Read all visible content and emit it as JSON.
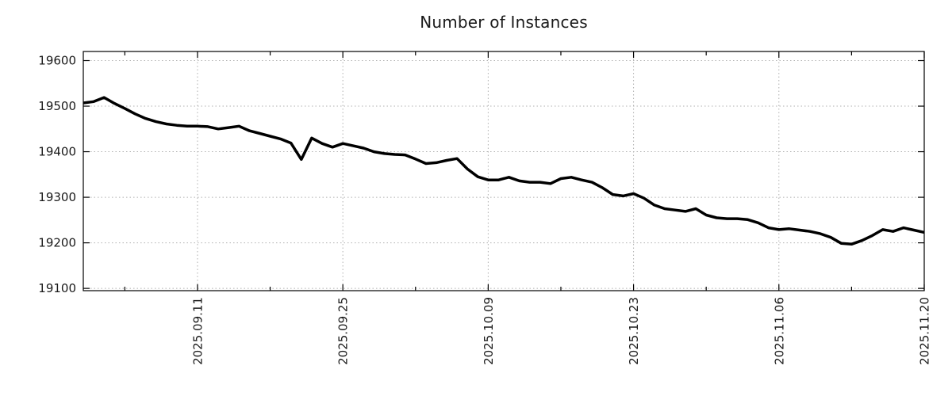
{
  "page": {
    "background": "#ffffff"
  },
  "chart_data": {
    "type": "line",
    "title": "Number of Instances",
    "xlabel": "",
    "ylabel": "",
    "grid": true,
    "legend": "none",
    "line_color": "#000000",
    "grid_color": "#b0b0b0",
    "axis_color": "#000000",
    "text_color": "#1a1a1a",
    "ylim": [
      19095,
      19620
    ],
    "yticks_major": [
      19100,
      19200,
      19300,
      19400,
      19500,
      19600
    ],
    "xticks_major": [
      "2025.09.11",
      "2025.09.25",
      "2025.10.09",
      "2025.10.23",
      "2025.11.06",
      "2025.11.20"
    ],
    "xticks_minor": [
      "2025.09.04",
      "2025.09.18",
      "2025.10.02",
      "2025.10.16",
      "2025.10.30",
      "2025.11.13"
    ],
    "x": [
      "2025.08.31",
      "2025.09.01",
      "2025.09.02",
      "2025.09.03",
      "2025.09.04",
      "2025.09.05",
      "2025.09.06",
      "2025.09.07",
      "2025.09.08",
      "2025.09.09",
      "2025.09.10",
      "2025.09.11",
      "2025.09.12",
      "2025.09.13",
      "2025.09.14",
      "2025.09.15",
      "2025.09.16",
      "2025.09.17",
      "2025.09.18",
      "2025.09.19",
      "2025.09.20",
      "2025.09.21",
      "2025.09.22",
      "2025.09.23",
      "2025.09.24",
      "2025.09.25",
      "2025.09.26",
      "2025.09.27",
      "2025.09.28",
      "2025.09.29",
      "2025.09.30",
      "2025.10.01",
      "2025.10.02",
      "2025.10.03",
      "2025.10.04",
      "2025.10.05",
      "2025.10.06",
      "2025.10.07",
      "2025.10.08",
      "2025.10.09",
      "2025.10.10",
      "2025.10.11",
      "2025.10.12",
      "2025.10.13",
      "2025.10.14",
      "2025.10.15",
      "2025.10.16",
      "2025.10.17",
      "2025.10.18",
      "2025.10.19",
      "2025.10.20",
      "2025.10.21",
      "2025.10.22",
      "2025.10.23",
      "2025.10.24",
      "2025.10.25",
      "2025.10.26",
      "2025.10.27",
      "2025.10.28",
      "2025.10.29",
      "2025.10.30",
      "2025.10.31",
      "2025.11.01",
      "2025.11.02",
      "2025.11.03",
      "2025.11.04",
      "2025.11.05",
      "2025.11.06",
      "2025.11.07",
      "2025.11.08",
      "2025.11.09",
      "2025.11.10",
      "2025.11.11",
      "2025.11.12",
      "2025.11.13",
      "2025.11.14",
      "2025.11.15",
      "2025.11.16",
      "2025.11.17",
      "2025.11.18",
      "2025.11.19",
      "2025.11.20"
    ],
    "values": [
      19507,
      19510,
      19519,
      19506,
      19495,
      19483,
      19473,
      19466,
      19461,
      19458,
      19456,
      19456,
      19455,
      19450,
      19453,
      19456,
      19446,
      19440,
      19434,
      19428,
      19419,
      19383,
      19430,
      19418,
      19410,
      19418,
      19413,
      19408,
      19400,
      19396,
      19394,
      19393,
      19384,
      19374,
      19376,
      19381,
      19385,
      19362,
      19345,
      19338,
      19338,
      19344,
      19336,
      19333,
      19333,
      19330,
      19341,
      19344,
      19338,
      19333,
      19321,
      19306,
      19303,
      19308,
      19298,
      19283,
      19275,
      19272,
      19269,
      19275,
      19261,
      19255,
      19253,
      19253,
      19251,
      19244,
      19233,
      19229,
      19231,
      19228,
      19225,
      19220,
      19212,
      19199,
      19197,
      19205,
      19216,
      19229,
      19225,
      19233,
      19228,
      19223
    ]
  }
}
